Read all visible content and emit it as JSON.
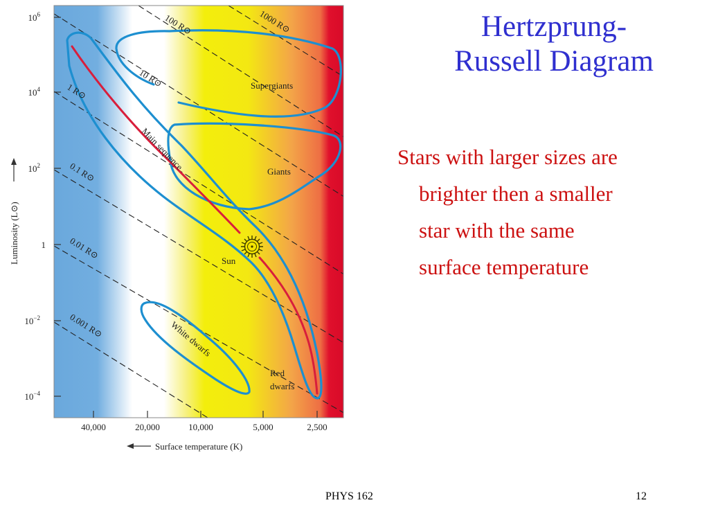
{
  "slide": {
    "title_line1": "Hertzprung-",
    "title_line2": "Russell Diagram",
    "body_lines": [
      "Stars with larger sizes are",
      "brighter then a smaller",
      "star with the same",
      "surface temperature"
    ],
    "footer_course": "PHYS 162",
    "footer_page": "12",
    "title_color": "#2f2fcf",
    "body_color": "#cc1111"
  },
  "diagram": {
    "y_axis_label": "Luminosity (L⊙)",
    "x_axis_label": "Surface temperature (K)",
    "y_ticks": [
      {
        "base": "10",
        "exp": "6",
        "log_l": 6
      },
      {
        "base": "10",
        "exp": "4",
        "log_l": 4
      },
      {
        "base": "10",
        "exp": "2",
        "log_l": 2
      },
      {
        "base": "1",
        "exp": "",
        "log_l": 0
      },
      {
        "base": "10",
        "exp": "−2",
        "log_l": -2
      },
      {
        "base": "10",
        "exp": "−4",
        "log_l": -4
      }
    ],
    "x_ticks": [
      "40,000",
      "20,000",
      "10,000",
      "5,000",
      "2,500"
    ],
    "radius_lines": [
      {
        "label": "1000 R⊙",
        "log_r": 3
      },
      {
        "label": "100 R⊙",
        "log_r": 2
      },
      {
        "label": "10 R⊙",
        "log_r": 1
      },
      {
        "label": "1 R⊙",
        "log_r": 0
      },
      {
        "label": "0.1 R⊙",
        "log_r": -1
      },
      {
        "label": "0.01 R⊙",
        "log_r": -2
      },
      {
        "label": "0.001 R⊙",
        "log_r": -3
      }
    ],
    "regions": {
      "main_sequence": "Main sequence",
      "supergiants": "Supergiants",
      "giants": "Giants",
      "white_dwarfs": "White dwarfs",
      "red_dwarfs_line1": "Red",
      "red_dwarfs_line2": "dwarfs",
      "sun": "Sun"
    },
    "colors": {
      "hot_blue": "#6aa8dc",
      "white": "#ffffff",
      "yellow": "#f3ee0c",
      "orange": "#f3a548",
      "red": "#e0102c",
      "outline_blue": "#1d8fd0",
      "main_sequence_red": "#d81e3c",
      "sun": "#f4e400"
    }
  }
}
